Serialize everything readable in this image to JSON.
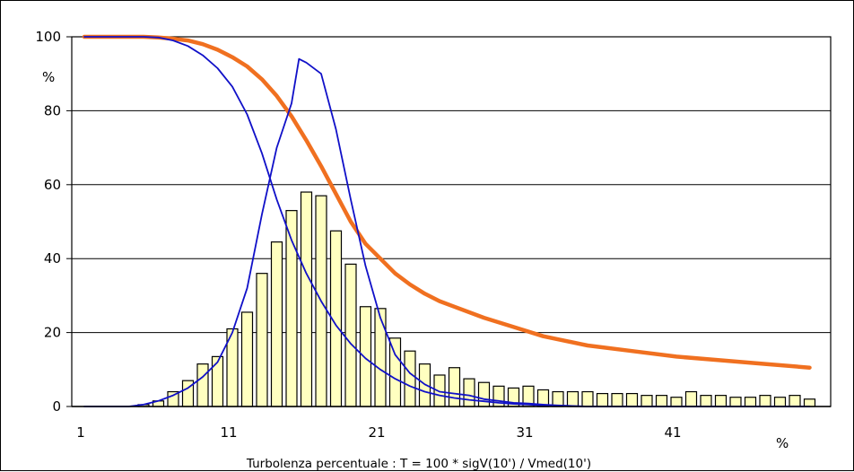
{
  "chart_data": {
    "type": "bar",
    "xlabel": "Turbolenza percentuale : T = 100 * sigV(10') / Vmed(10')",
    "x_unit_label": "%",
    "y_unit_label": "%",
    "ylim": [
      0,
      100
    ],
    "yticks": [
      0,
      20,
      40,
      60,
      80,
      100
    ],
    "xlim": [
      0,
      50
    ],
    "xticks": [
      1,
      11,
      21,
      31,
      41
    ],
    "grid": "horizontal",
    "colors": {
      "bars": "#FFFFC0",
      "bar_edge": "#000000",
      "exceedance": "#F07020",
      "blue": "#1010C8"
    },
    "bars": {
      "x": [
        1,
        2,
        3,
        4,
        5,
        6,
        7,
        8,
        9,
        10,
        11,
        12,
        13,
        14,
        15,
        16,
        17,
        18,
        19,
        20,
        21,
        22,
        23,
        24,
        25,
        26,
        27,
        28,
        29,
        30,
        31,
        32,
        33,
        34,
        35,
        36,
        37,
        38,
        39,
        40,
        41,
        42,
        43,
        44,
        45,
        46,
        47,
        48,
        49,
        50
      ],
      "values": [
        0,
        0,
        0,
        0,
        0.5,
        1.5,
        4,
        7,
        11.5,
        13.5,
        21,
        25.5,
        36,
        44.5,
        53,
        58,
        57,
        47.5,
        38.5,
        27,
        26.5,
        18.5,
        15,
        11.5,
        8.5,
        10.5,
        7.5,
        6.5,
        5.5,
        5,
        5.5,
        4.5,
        4,
        4,
        4,
        3.5,
        3.5,
        3.5,
        3,
        3,
        2.5,
        4,
        3,
        3,
        2.5,
        2.5,
        3,
        2.5,
        3,
        2
      ]
    },
    "series": [
      {
        "x": [
          1,
          3,
          5,
          6,
          7,
          8,
          9,
          10,
          11,
          12,
          13,
          14,
          15,
          16,
          17,
          18,
          19,
          20,
          21,
          22,
          23,
          24,
          25,
          26,
          28,
          30,
          32,
          35,
          38,
          41,
          44,
          47,
          50
        ],
        "values": [
          100,
          100,
          100,
          99.8,
          99.5,
          99,
          98,
          96.5,
          94.5,
          92,
          88.5,
          84,
          78.5,
          72,
          65,
          57.5,
          50,
          44,
          40,
          36,
          33,
          30.5,
          28.5,
          27,
          24,
          21.5,
          19,
          16.5,
          15,
          13.5,
          12.5,
          11.5,
          10.5
        ]
      },
      {
        "x": [
          1,
          3,
          5,
          6,
          7,
          8,
          9,
          10,
          11,
          12,
          13,
          14,
          15,
          16,
          17,
          18,
          19,
          20,
          21,
          22,
          23,
          24,
          25,
          26,
          27,
          28,
          29,
          30,
          31,
          32,
          33,
          34,
          35,
          50
        ],
        "values": [
          100,
          100,
          100,
          99.8,
          99,
          97.5,
          95,
          91.5,
          86.5,
          79,
          68.5,
          56,
          45,
          36,
          28.5,
          22,
          17,
          13,
          10,
          7.5,
          5.5,
          4,
          3,
          2.3,
          1.8,
          1.4,
          1,
          0.7,
          0.5,
          0.3,
          0.2,
          0.1,
          0,
          0
        ]
      },
      {
        "x": [
          1,
          3,
          4,
          5,
          6,
          7,
          8,
          9,
          10,
          11,
          12,
          13,
          14,
          15,
          15.5,
          16,
          17,
          18,
          19,
          20,
          21,
          22,
          23,
          24,
          25,
          26,
          27,
          28,
          29,
          30,
          31,
          32,
          33,
          35,
          50
        ],
        "values": [
          0,
          0,
          0,
          0.5,
          1.5,
          3,
          5,
          8,
          12,
          20,
          32,
          52,
          70,
          82,
          94,
          93,
          90,
          75,
          56,
          38,
          24,
          14,
          9,
          6,
          4,
          3.5,
          3,
          2,
          1.5,
          1,
          0.8,
          0.5,
          0.3,
          0,
          0
        ]
      }
    ]
  }
}
